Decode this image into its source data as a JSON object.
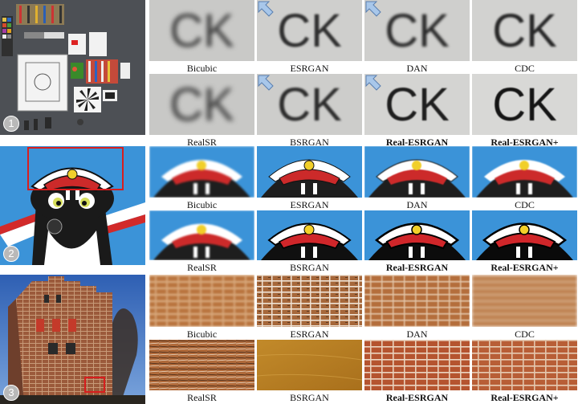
{
  "figure": {
    "groups": [
      {
        "badge": "1",
        "top_row": [
          "Bicubic",
          "ESRGAN",
          "DAN",
          "CDC"
        ],
        "bottom_row": [
          "RealSR",
          "BSRGAN",
          "Real-ESRGAN",
          "Real-ESRGAN+"
        ],
        "bold": [
          "Real-ESRGAN",
          "Real-ESRGAN+"
        ],
        "crop_letters": "CK"
      },
      {
        "badge": "2",
        "top_row": [
          "Bicubic",
          "ESRGAN",
          "DAN",
          "CDC"
        ],
        "bottom_row": [
          "RealSR",
          "BSRGAN",
          "Real-ESRGAN",
          "Real-ESRGAN+"
        ],
        "bold": [
          "Real-ESRGAN",
          "Real-ESRGAN+"
        ]
      },
      {
        "badge": "3",
        "top_row": [
          "Bicubic",
          "ESRGAN",
          "DAN",
          "CDC"
        ],
        "bottom_row": [
          "RealSR",
          "BSRGAN",
          "Real-ESRGAN",
          "Real-ESRGAN+"
        ],
        "bold": [
          "Real-ESRGAN",
          "Real-ESRGAN+"
        ]
      }
    ],
    "colors": {
      "highlight_box": "#d81e1e",
      "caption_text": "#111111",
      "sky_blue": "#3b93d8",
      "brick": "#a0553a"
    }
  }
}
